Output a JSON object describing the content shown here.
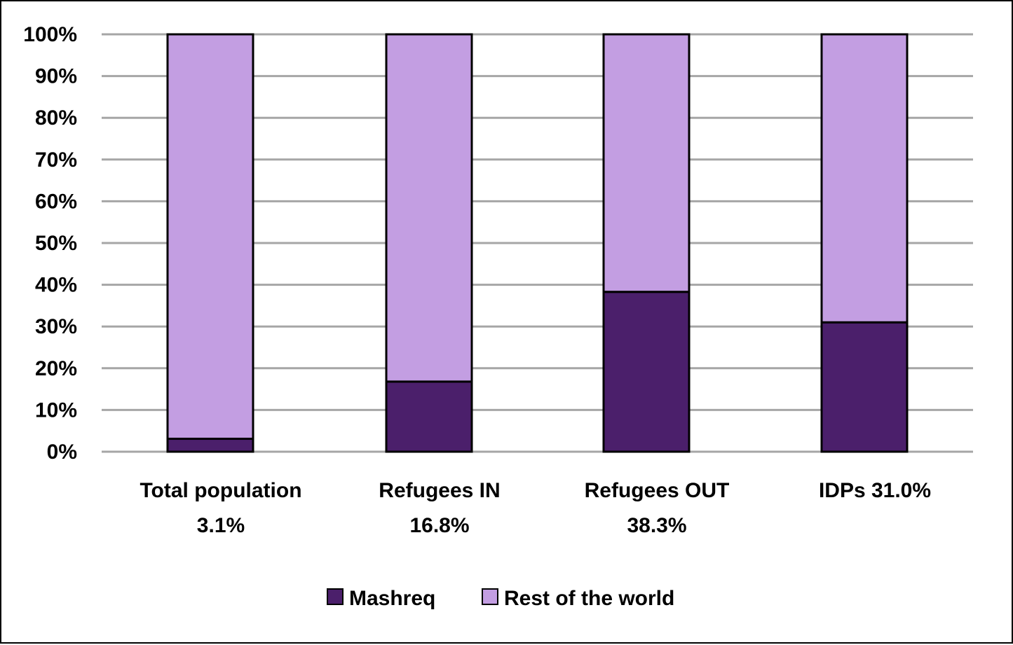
{
  "chart_data": {
    "type": "bar",
    "stacked": true,
    "categories": [
      [
        "Total population",
        "3.1%"
      ],
      [
        "Refugees IN",
        "16.8%"
      ],
      [
        "Refugees OUT",
        "38.3%"
      ],
      [
        "IDPs 31.0%"
      ]
    ],
    "series": [
      {
        "name": "Mashreq",
        "values": [
          3.1,
          16.8,
          38.3,
          31.0
        ],
        "color": "#4b1f6b"
      },
      {
        "name": "Rest of the world",
        "values": [
          96.9,
          83.2,
          61.7,
          69.0
        ],
        "color": "#c39ee2"
      }
    ],
    "y_ticks": [
      "0%",
      "10%",
      "20%",
      "30%",
      "40%",
      "50%",
      "60%",
      "70%",
      "80%",
      "90%",
      "100%"
    ],
    "ylim": [
      0,
      100
    ],
    "grid": true,
    "legend": "bottom",
    "title": "",
    "xlabel": "",
    "ylabel": ""
  }
}
